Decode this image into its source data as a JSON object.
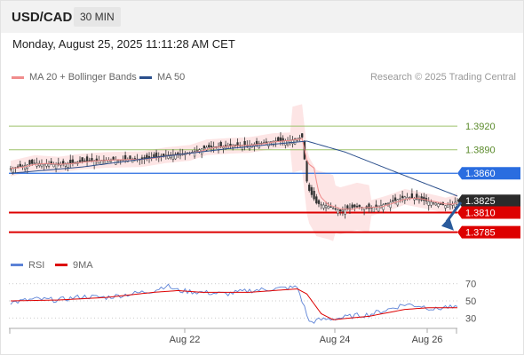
{
  "header": {
    "symbol": "USD/CAD",
    "timeframe": "30 MIN"
  },
  "datetime": "Monday, August 25, 2025 11:11:28 AM CET",
  "legend": {
    "ma20": {
      "label": "MA 20 + Bollinger Bands",
      "color": "#f08c8c"
    },
    "ma50": {
      "label": "MA 50",
      "color": "#2b4f8c"
    }
  },
  "credit": "Research © 2025 Trading Central",
  "colors": {
    "up": "#333333",
    "down": "#333333",
    "support": "#dd0000",
    "pivot": "#2a6de0",
    "resistance": "#9dc26b",
    "rsi": "#5c82d6",
    "rsi_ma": "#dd0000",
    "arrow": "#2a5b9c"
  },
  "chart_data": [
    {
      "type": "candlestick",
      "y_range": [
        1.3762,
        1.3945
      ],
      "x_ticks": [
        "Aug 22",
        "Aug 24",
        "Aug 26"
      ],
      "levels": [
        {
          "value": 1.392,
          "label": "1.3920",
          "kind": "resistance"
        },
        {
          "value": 1.389,
          "label": "1.3890",
          "kind": "resistance"
        },
        {
          "value": 1.386,
          "label": "1.3860",
          "kind": "pivot"
        },
        {
          "value": 1.3825,
          "label": "1.3825",
          "kind": "last"
        },
        {
          "value": 1.381,
          "label": "1.3810",
          "kind": "support"
        },
        {
          "value": 1.3785,
          "label": "1.3785",
          "kind": "support"
        }
      ],
      "close_path": [
        [
          0,
          1.3866
        ],
        [
          10,
          1.3873
        ],
        [
          20,
          1.3871
        ],
        [
          30,
          1.3875
        ],
        [
          40,
          1.3877
        ],
        [
          55,
          1.3878
        ],
        [
          65,
          1.3883
        ],
        [
          75,
          1.3886
        ],
        [
          82,
          1.3893
        ],
        [
          92,
          1.3895
        ],
        [
          100,
          1.3896
        ],
        [
          110,
          1.3901
        ],
        [
          117,
          1.3902
        ],
        [
          122,
          1.3906
        ],
        [
          124,
          1.385
        ],
        [
          125,
          1.3838
        ],
        [
          128,
          1.3822
        ],
        [
          133,
          1.3818
        ],
        [
          138,
          1.3812
        ],
        [
          145,
          1.3818
        ],
        [
          150,
          1.3815
        ],
        [
          158,
          1.3822
        ],
        [
          165,
          1.383
        ],
        [
          172,
          1.3826
        ],
        [
          178,
          1.3822
        ],
        [
          182,
          1.3819
        ],
        [
          185,
          1.3821
        ],
        [
          187,
          1.3825
        ]
      ],
      "ma50_path": [
        [
          0,
          1.386
        ],
        [
          30,
          1.3868
        ],
        [
          60,
          1.388
        ],
        [
          90,
          1.3891
        ],
        [
          110,
          1.3897
        ],
        [
          124,
          1.3901
        ],
        [
          140,
          1.3887
        ],
        [
          160,
          1.3863
        ],
        [
          187,
          1.3831
        ]
      ],
      "projection": {
        "from": [
          187,
          1.3823
        ],
        "to": [
          195,
          1.3786
        ]
      },
      "index_count": 188
    },
    {
      "type": "line",
      "series": [
        {
          "name": "RSI",
          "color": "#5c82d6",
          "values": [
            [
              0,
              48
            ],
            [
              10,
              52
            ],
            [
              20,
              51
            ],
            [
              30,
              55
            ],
            [
              40,
              54
            ],
            [
              50,
              58
            ],
            [
              60,
              62
            ],
            [
              65,
              68
            ],
            [
              70,
              62
            ],
            [
              80,
              60
            ],
            [
              90,
              58
            ],
            [
              100,
              62
            ],
            [
              110,
              64
            ],
            [
              120,
              66
            ],
            [
              124,
              34
            ],
            [
              125,
              25
            ],
            [
              130,
              28
            ],
            [
              138,
              30
            ],
            [
              145,
              33
            ],
            [
              150,
              34
            ],
            [
              158,
              40
            ],
            [
              165,
              46
            ],
            [
              172,
              44
            ],
            [
              178,
              40
            ],
            [
              182,
              43
            ],
            [
              187,
              41
            ]
          ]
        },
        {
          "name": "9MA",
          "color": "#dd0000",
          "values": [
            [
              0,
              50
            ],
            [
              20,
              51
            ],
            [
              40,
              54
            ],
            [
              60,
              60
            ],
            [
              70,
              62
            ],
            [
              80,
              60
            ],
            [
              100,
              60
            ],
            [
              120,
              64
            ],
            [
              124,
              58
            ],
            [
              130,
              35
            ],
            [
              135,
              28
            ],
            [
              150,
              32
            ],
            [
              165,
              40
            ],
            [
              175,
              42
            ],
            [
              187,
              42
            ]
          ]
        }
      ],
      "y_ticks": [
        70,
        50,
        30
      ],
      "y_range": [
        22,
        78
      ]
    }
  ]
}
